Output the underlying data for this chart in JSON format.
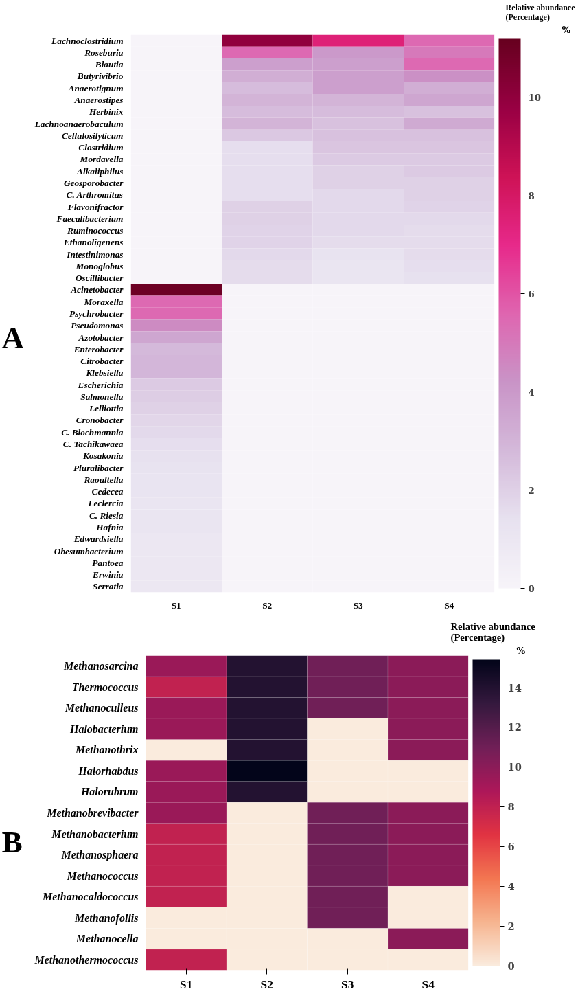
{
  "chart_data": [
    {
      "type": "heatmap",
      "annotations": [
        "A",
        "%"
      ],
      "clabel": "Relative abundance\n(Percentage)",
      "categories": [
        "S1",
        "S2",
        "S3",
        "S4"
      ],
      "y_categories": [
        "Lachnoclostridium",
        "Roseburia",
        "Blautia",
        "Butyrivibrio",
        "Anaerotignum",
        "Anaerostipes",
        "Herbinix",
        "Lachnoanaerobaculum",
        "Cellulosilyticum",
        "Clostridium",
        "Mordavella",
        "Alkaliphilus",
        "Geosporobacter",
        "C. Arthromitus",
        "Flavonifractor",
        "Faecalibacterium",
        "Ruminococcus",
        "Ethanoligenens",
        "Intestinimonas",
        "Monoglobus",
        "Oscillibacter",
        "Acinetobacter",
        "Moraxella",
        "Psychrobacter",
        "Pseudomonas",
        "Azotobacter",
        "Enterobacter",
        "Citrobacter",
        "Klebsiella",
        "Escherichia",
        "Salmonella",
        "Lelliottia",
        "Cronobacter",
        "C. Blochmannia",
        "C. Tachikawaea",
        "Kosakonia",
        "Pluralibacter",
        "Raoultella",
        "Cedecea",
        "Leclercia",
        "C. Riesia",
        "Hafnia",
        "Edwardsiella",
        "Obesumbacterium",
        "Pantoea",
        "Erwinia",
        "Serratia"
      ],
      "cells": [
        [
          0,
          10,
          7.5,
          5.5
        ],
        [
          0,
          5.5,
          4,
          5
        ],
        [
          0,
          3.8,
          3.8,
          5.5
        ],
        [
          0,
          3.2,
          3.8,
          4.3
        ],
        [
          0,
          2.7,
          3.8,
          3.2
        ],
        [
          0,
          3,
          3,
          3.5
        ],
        [
          0,
          2.7,
          2.7,
          2.5
        ],
        [
          0,
          3,
          2.5,
          3.4
        ],
        [
          0,
          2.3,
          2.5,
          2.5
        ],
        [
          0,
          1.5,
          2.4,
          2.4
        ],
        [
          0,
          1.5,
          2.2,
          2.2
        ],
        [
          0,
          1.5,
          2,
          2.2
        ],
        [
          0,
          1.5,
          2,
          2
        ],
        [
          0,
          1.5,
          1.7,
          2
        ],
        [
          0,
          2,
          1.7,
          1.9
        ],
        [
          0,
          2,
          1.7,
          1.7
        ],
        [
          0,
          1.9,
          1.7,
          1.6
        ],
        [
          0,
          1.9,
          1.6,
          1.6
        ],
        [
          0,
          1.7,
          1.3,
          1.6
        ],
        [
          0,
          1.6,
          1.1,
          1.5
        ],
        [
          0,
          1.6,
          1.1,
          1.4
        ],
        [
          11,
          0,
          0,
          0
        ],
        [
          5.5,
          0,
          0,
          0
        ],
        [
          5.5,
          0,
          0,
          0
        ],
        [
          4.5,
          0,
          0,
          0
        ],
        [
          3.5,
          0,
          0,
          0
        ],
        [
          2.8,
          0,
          0,
          0
        ],
        [
          2.9,
          0,
          0,
          0
        ],
        [
          2.9,
          0,
          0,
          0
        ],
        [
          2.2,
          0,
          0,
          0
        ],
        [
          2.1,
          0,
          0,
          0
        ],
        [
          2,
          0,
          0,
          0
        ],
        [
          1.8,
          0,
          0,
          0
        ],
        [
          1.7,
          0,
          0,
          0
        ],
        [
          1.5,
          0,
          0,
          0
        ],
        [
          1.4,
          0,
          0,
          0
        ],
        [
          1.3,
          0,
          0,
          0
        ],
        [
          1.2,
          0,
          0,
          0
        ],
        [
          1.2,
          0,
          0,
          0
        ],
        [
          1.1,
          0,
          0,
          0
        ],
        [
          1.1,
          0,
          0,
          0
        ],
        [
          1.1,
          0,
          0,
          0
        ],
        [
          1,
          0,
          0,
          0
        ],
        [
          1,
          0,
          0,
          0
        ],
        [
          1,
          0,
          0,
          0
        ],
        [
          1,
          0,
          0,
          0
        ],
        [
          1,
          0,
          0,
          0
        ]
      ],
      "clim": [
        0,
        11.2
      ],
      "cticks": [
        0,
        2,
        4,
        6,
        8,
        10
      ]
    },
    {
      "type": "heatmap",
      "annotations": [
        "B",
        "%"
      ],
      "clabel": "Relative abundance\n(Percentage)",
      "categories": [
        "S1",
        "S2",
        "S3",
        "S4"
      ],
      "y_categories": [
        "Methanosarcina",
        "Thermococcus",
        "Methanoculleus",
        "Halobacterium",
        "Methanothrix",
        "Halorhabdus",
        "Halorubrum",
        "Methanobrevibacter",
        "Methanobacterium",
        "Methanosphaera",
        "Methanococcus",
        "Methanocaldococcus",
        "Methanofollis",
        "Methanocella",
        "Methanothermococcus"
      ],
      "cells": [
        [
          9.5,
          14,
          11,
          10
        ],
        [
          8,
          14,
          11,
          10
        ],
        [
          9.5,
          14,
          11,
          10
        ],
        [
          9.5,
          14,
          0,
          10
        ],
        [
          0,
          14,
          0,
          10
        ],
        [
          9.5,
          15.4,
          0,
          0
        ],
        [
          9.5,
          14,
          0,
          0
        ],
        [
          9.5,
          0,
          11,
          10
        ],
        [
          8,
          0,
          11,
          10
        ],
        [
          8,
          0,
          11,
          10
        ],
        [
          8,
          0,
          11,
          10
        ],
        [
          8,
          0,
          11,
          0
        ],
        [
          0,
          0,
          11,
          0
        ],
        [
          0,
          0,
          0,
          10
        ],
        [
          8,
          0,
          0,
          0
        ]
      ],
      "clim": [
        0,
        15.4
      ],
      "cticks": [
        0,
        2,
        4,
        6,
        8,
        10,
        12,
        14
      ]
    }
  ]
}
